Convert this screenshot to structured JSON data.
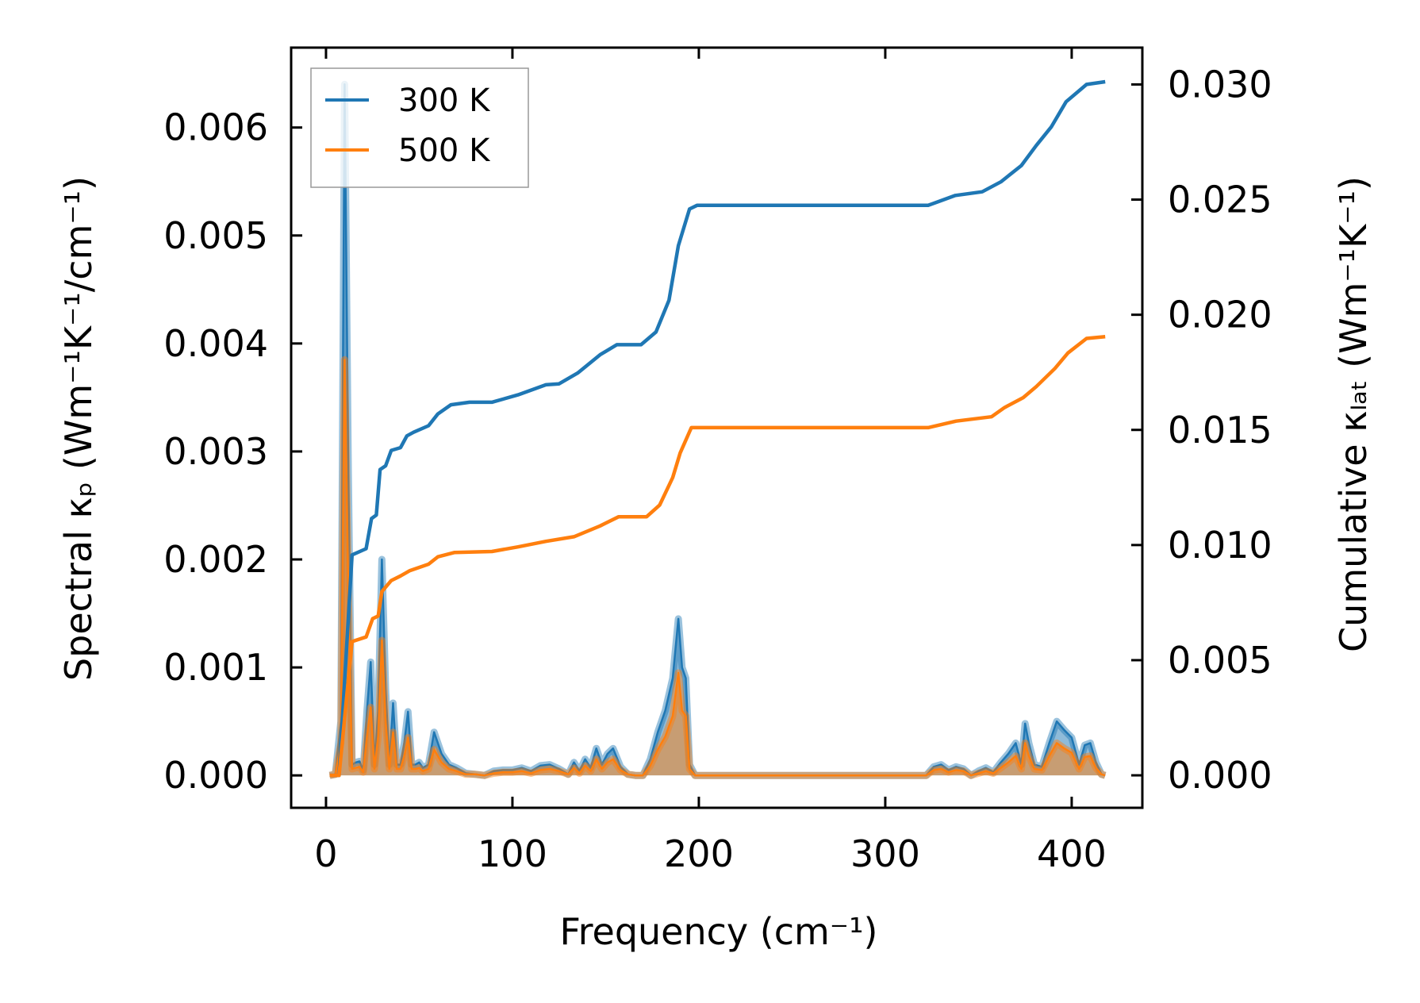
{
  "chart_data": {
    "type": "line",
    "xlabel": "Frequency (cm⁻¹)",
    "ylabel_left": "Spectral κₚ (Wm⁻¹K⁻¹/cm⁻¹)",
    "ylabel_right": "Cumulative κₗₐₜ (Wm⁻¹K⁻¹)",
    "xlim": [
      -18.7,
      437.9
    ],
    "ylim_left": [
      -0.0003,
      0.00674
    ],
    "ylim_right": [
      -0.00141,
      0.0316
    ],
    "x_ticks": [
      "0",
      "100",
      "200",
      "300",
      "400"
    ],
    "x_tick_values": [
      0,
      100,
      200,
      300,
      400
    ],
    "y_left_ticks": [
      "0.000",
      "0.001",
      "0.002",
      "0.003",
      "0.004",
      "0.005",
      "0.006"
    ],
    "y_left_tick_values": [
      0,
      0.001,
      0.002,
      0.003,
      0.004,
      0.005,
      0.006
    ],
    "y_right_ticks": [
      "0.000",
      "0.005",
      "0.010",
      "0.015",
      "0.020",
      "0.025",
      "0.030"
    ],
    "y_right_tick_values": [
      0,
      0.005,
      0.01,
      0.015,
      0.02,
      0.025,
      0.03
    ],
    "grid": false,
    "legend_placement": "top-left",
    "legend": [
      "300 K",
      "500 K"
    ],
    "colors": {
      "300 K": "#1f77b4",
      "500 K": "#ff7f0e"
    },
    "spectral": {
      "x": [
        2,
        5,
        8,
        10,
        12,
        14,
        16,
        18,
        20,
        22,
        24,
        26,
        28,
        30,
        32,
        34,
        36,
        38,
        40,
        42,
        44,
        46,
        48,
        50,
        52,
        55,
        58,
        62,
        66,
        70,
        75,
        80,
        85,
        90,
        95,
        100,
        105,
        110,
        115,
        120,
        125,
        130,
        133,
        136,
        139,
        142,
        145,
        148,
        151,
        154,
        158,
        162,
        166,
        170,
        174,
        178,
        182,
        186,
        189,
        191,
        193,
        195,
        198,
        202,
        250,
        300,
        322,
        326,
        330,
        334,
        338,
        342,
        346,
        350,
        354,
        358,
        362,
        366,
        370,
        373,
        375,
        377,
        380,
        384,
        388,
        392,
        396,
        400,
        404,
        407,
        410,
        413,
        416,
        418
      ],
      "series": [
        {
          "name": "300 K",
          "values": [
            0,
            1e-05,
            0.0005,
            0.0064,
            0.0028,
            0.0001,
            0.00012,
            0.00013,
            5e-05,
            0.0006,
            0.00105,
            0.0001,
            0.0006,
            0.002,
            0.0008,
            0.0001,
            0.00067,
            0.0001,
            0.0001,
            0.0003,
            0.00059,
            0.0001,
            0.0001,
            0.00012,
            7e-05,
            0.0001,
            0.0004,
            0.0002,
            0.0001,
            7e-05,
            2e-05,
            1e-05,
            0,
            4e-05,
            5e-05,
            5e-05,
            7e-05,
            4e-05,
            9e-05,
            0.0001,
            6e-05,
            1e-05,
            0.00012,
            4e-05,
            0.00015,
            7e-05,
            0.00025,
            0.0001,
            0.0002,
            0.00025,
            8e-05,
            1e-05,
            0,
            0,
            0.00015,
            0.0004,
            0.0006,
            0.0009,
            0.00145,
            0.001,
            0.0009,
            0.0001,
            0,
            0,
            0,
            0,
            0,
            8e-05,
            0.0001,
            5e-05,
            8e-05,
            6e-05,
            0,
            4e-05,
            7e-05,
            3e-05,
            0.00012,
            0.0002,
            0.0003,
            0.0001,
            0.00048,
            0.0003,
            0.0001,
            8e-05,
            0.0003,
            0.0005,
            0.00042,
            0.00035,
            0.0001,
            0.00028,
            0.0003,
            0.00012,
            1e-05,
            0
          ]
        },
        {
          "name": "500 K",
          "values": [
            0,
            1e-05,
            0.0003,
            0.00385,
            0.0017,
            6e-05,
            7e-05,
            8e-05,
            3e-05,
            0.00036,
            0.00063,
            6e-05,
            0.00036,
            0.00125,
            0.0005,
            6e-05,
            0.0004,
            6e-05,
            6e-05,
            0.00018,
            0.00035,
            6e-05,
            6e-05,
            7e-05,
            4e-05,
            6e-05,
            0.00024,
            0.00012,
            6e-05,
            4e-05,
            1e-05,
            1e-05,
            0,
            2e-05,
            3e-05,
            3e-05,
            4e-05,
            2e-05,
            5e-05,
            6e-05,
            4e-05,
            1e-05,
            7e-05,
            2e-05,
            9e-05,
            4e-05,
            0.00015,
            6e-05,
            0.00012,
            0.00015,
            5e-05,
            1e-05,
            0,
            0,
            9e-05,
            0.00024,
            0.00036,
            0.00055,
            0.00095,
            0.0006,
            0.00055,
            6e-05,
            0,
            0,
            0,
            0,
            0,
            5e-05,
            6e-05,
            3e-05,
            5e-05,
            4e-05,
            0,
            2e-05,
            4e-05,
            2e-05,
            7e-05,
            0.00012,
            0.00018,
            6e-05,
            0.0003,
            0.00018,
            6e-05,
            5e-05,
            0.00018,
            0.0003,
            0.00025,
            0.00021,
            6e-05,
            0.00017,
            0.00018,
            7e-05,
            1e-05,
            0
          ]
        }
      ]
    },
    "cumulative": [
      {
        "name": "300 K",
        "x": [
          2,
          7,
          14,
          21.5,
          24.4,
          27,
          29,
          32,
          35,
          40,
          43.4,
          47,
          55,
          60,
          67,
          77,
          89,
          103,
          118,
          125,
          135,
          147,
          156,
          169,
          177,
          184,
          189,
          195,
          199,
          323,
          337.6,
          352,
          362,
          373,
          381,
          389,
          397,
          408,
          418
        ],
        "values": [
          0,
          0,
          0.00957,
          0.00984,
          0.01115,
          0.0113,
          0.01328,
          0.01344,
          0.01411,
          0.01423,
          0.01474,
          0.0149,
          0.01518,
          0.01569,
          0.01609,
          0.0162,
          0.0162,
          0.01652,
          0.01696,
          0.017,
          0.01747,
          0.01826,
          0.0187,
          0.0187,
          0.01925,
          0.02063,
          0.023,
          0.02459,
          0.02475,
          0.02475,
          0.02518,
          0.02534,
          0.02577,
          0.02648,
          0.02735,
          0.02815,
          0.02925,
          0.03,
          0.03012
        ]
      },
      {
        "name": "500 K",
        "x": [
          2,
          7,
          14,
          21.5,
          25,
          28,
          30,
          35,
          40,
          45,
          55,
          60,
          69,
          89,
          103,
          118,
          133,
          147,
          157,
          172,
          179,
          186,
          190,
          196,
          323,
          338,
          357,
          364,
          374,
          381,
          391,
          398,
          408,
          418
        ],
        "values": [
          0,
          0,
          0.00581,
          0.00601,
          0.0068,
          0.00692,
          0.00798,
          0.00846,
          0.00866,
          0.00889,
          0.00917,
          0.00949,
          0.00968,
          0.00972,
          0.00992,
          0.01016,
          0.01036,
          0.01083,
          0.01123,
          0.01123,
          0.01174,
          0.01293,
          0.014,
          0.0151,
          0.0151,
          0.01538,
          0.01557,
          0.01597,
          0.0164,
          0.01688,
          0.01767,
          0.01834,
          0.01897,
          0.01905
        ]
      }
    ]
  }
}
